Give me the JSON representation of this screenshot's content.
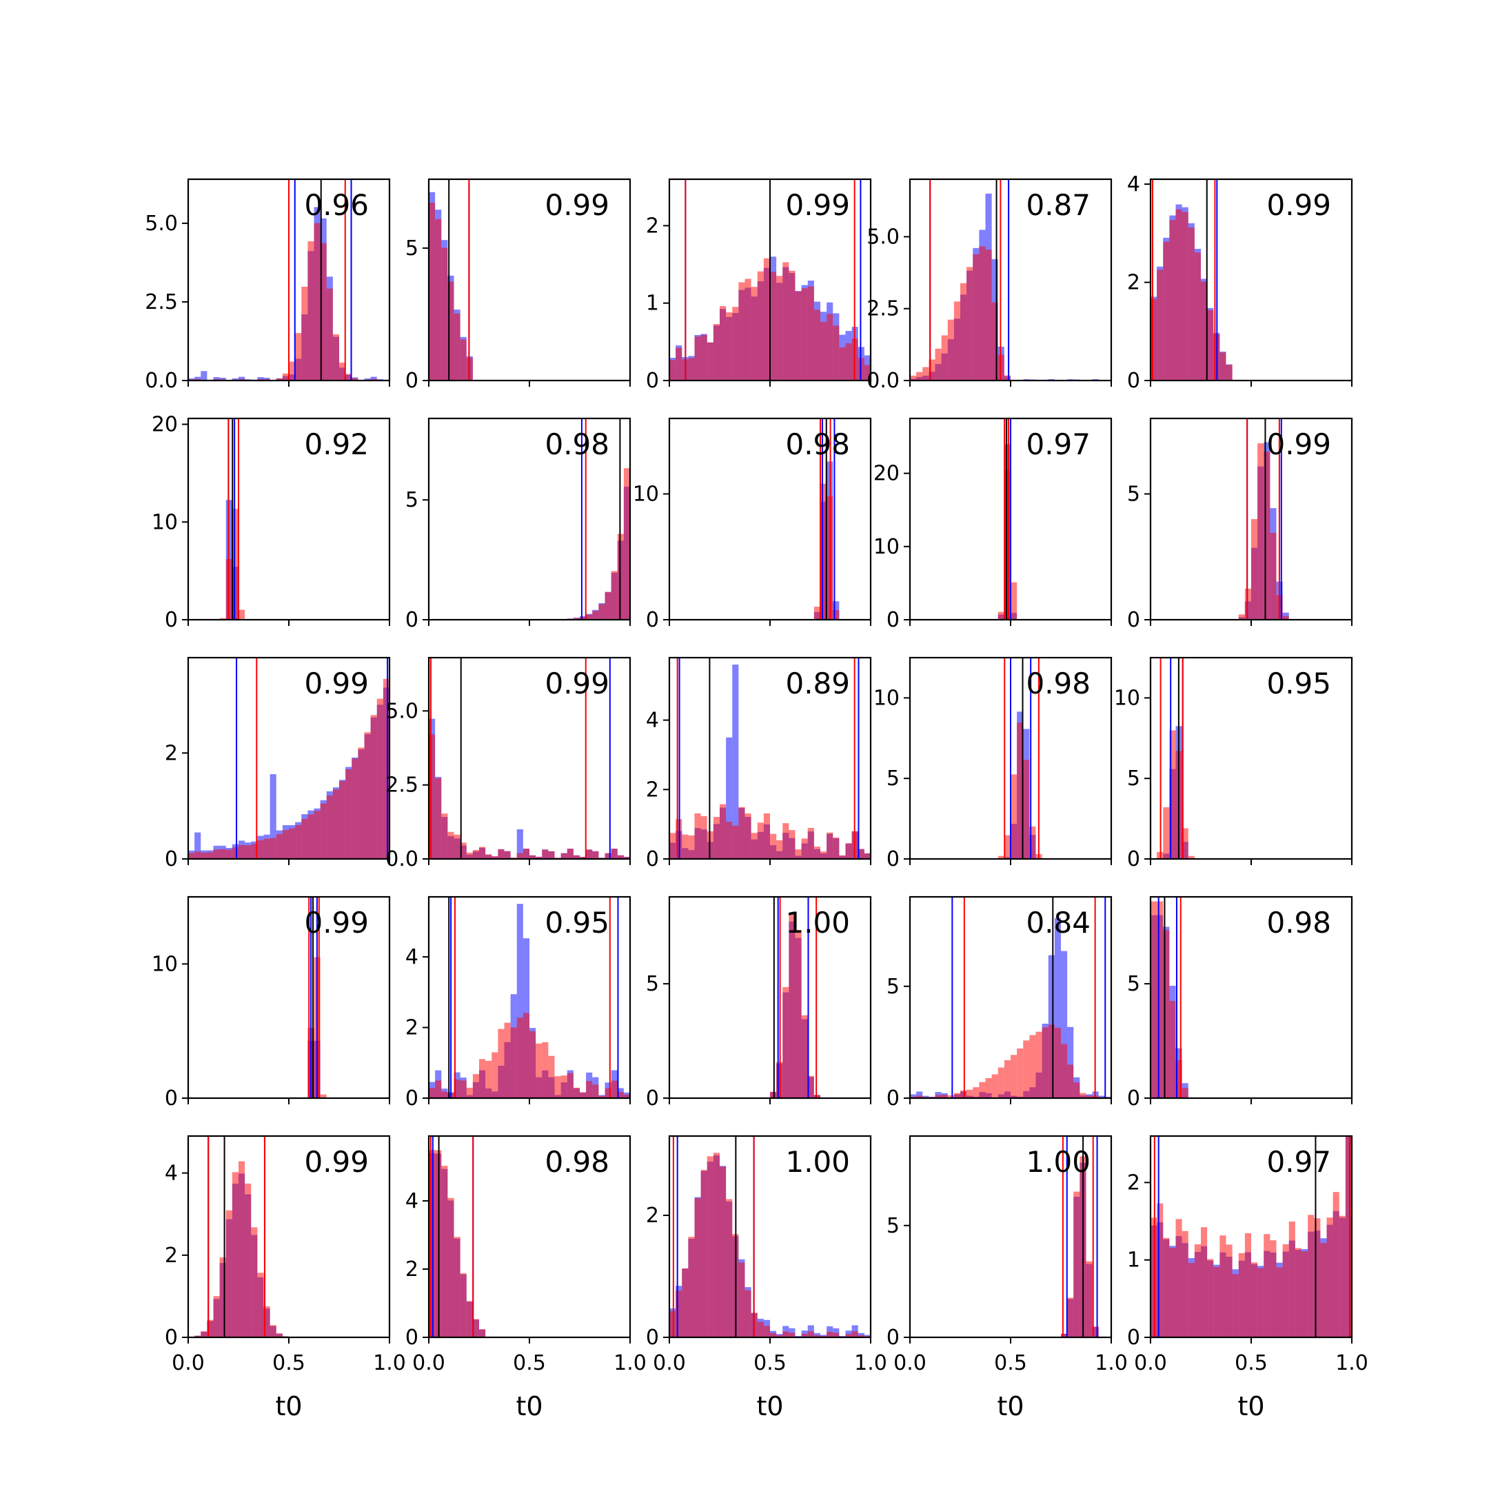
{
  "figure": {
    "xlabel": "t0",
    "x_ticks": [
      "0.0",
      "0.5",
      "1.0"
    ],
    "series_colors": {
      "blue": "#0000ff",
      "red": "#ff0000",
      "true_value": "#000000"
    }
  },
  "chart_data": {
    "type": "bar",
    "layout": {
      "rows": 5,
      "cols": 5
    },
    "xlim": [
      0,
      1
    ],
    "panels": [
      {
        "label": "0.96",
        "ylim": [
          0,
          6.4
        ],
        "yticks": [
          "0.0",
          "2.5",
          "5.0"
        ],
        "ytick_values": [
          0,
          2.5,
          5
        ],
        "true": 0.66,
        "blue_ci": [
          0.53,
          0.81
        ],
        "red_ci": [
          0.5,
          0.78
        ],
        "blue_hist": {
          "type": "gauss",
          "c": 0.65,
          "s": 0.05,
          "a": 5.6,
          "b": 0.12,
          "bumps": [
            [
              0.07,
              0.3
            ]
          ]
        },
        "red_hist": {
          "type": "gauss",
          "c": 0.64,
          "s": 0.06,
          "a": 5.0,
          "b": 0.05
        }
      },
      {
        "label": "0.99",
        "ylim": [
          0,
          7.6
        ],
        "yticks": [
          "0",
          "5"
        ],
        "ytick_values": [
          0,
          5
        ],
        "true": 0.1,
        "blue_ci": [
          0.0,
          0.2
        ],
        "red_ci": [
          0.0,
          0.2
        ],
        "blue_hist": {
          "type": "halfgauss",
          "c": 0,
          "s": 0.1,
          "a": 7.2,
          "cut": 0.21
        },
        "red_hist": {
          "type": "halfgauss",
          "c": 0,
          "s": 0.1,
          "a": 6.8,
          "cut": 0.21
        }
      },
      {
        "label": "0.99",
        "ylim": [
          0,
          2.6
        ],
        "yticks": [
          "0",
          "1",
          "2"
        ],
        "ytick_values": [
          0,
          1,
          2
        ],
        "true": 0.5,
        "blue_ci": [
          0.08,
          0.95
        ],
        "red_ci": [
          0.08,
          0.92
        ],
        "blue_hist": {
          "type": "gauss",
          "c": 0.55,
          "s": 0.25,
          "a": 1.2,
          "b": 0.3,
          "bumps": [
            [
              0.5,
              1.6
            ]
          ]
        },
        "red_hist": {
          "type": "gauss",
          "c": 0.52,
          "s": 0.22,
          "a": 1.3,
          "b": 0.3
        }
      },
      {
        "label": "0.87",
        "ylim": [
          0,
          7.0
        ],
        "yticks": [
          "0.0",
          "2.5",
          "5.0"
        ],
        "ytick_values": [
          0,
          2.5,
          5
        ],
        "true": 0.43,
        "blue_ci": [
          0.1,
          0.49
        ],
        "red_ci": [
          0.1,
          0.45
        ],
        "blue_hist": {
          "type": "skew",
          "c": 0.4,
          "sl": 0.12,
          "sr": 0.03,
          "a": 5.5,
          "b": 0.05,
          "bumps": [
            [
              0.38,
              6.5
            ]
          ]
        },
        "red_hist": {
          "type": "skew",
          "c": 0.38,
          "sl": 0.14,
          "sr": 0.04,
          "a": 4.7,
          "b": 0.02
        }
      },
      {
        "label": "0.99",
        "ylim": [
          0,
          4.1
        ],
        "yticks": [
          "0",
          "2",
          "4"
        ],
        "ytick_values": [
          0,
          2,
          4
        ],
        "true": 0.28,
        "blue_ci": [
          0.0,
          0.33
        ],
        "red_ci": [
          0.01,
          0.32
        ],
        "blue_hist": {
          "type": "gauss",
          "c": 0.15,
          "s": 0.11,
          "a": 3.6,
          "cut": 0.4
        },
        "red_hist": {
          "type": "gauss",
          "c": 0.15,
          "s": 0.11,
          "a": 3.5,
          "cut": 0.4
        }
      },
      {
        "label": "0.92",
        "ylim": [
          0,
          20.6
        ],
        "yticks": [
          "0",
          "10",
          "20"
        ],
        "ytick_values": [
          0,
          10,
          20
        ],
        "true": 0.22,
        "blue_ci": [
          0.2,
          0.23
        ],
        "red_ci": [
          0.2,
          0.25
        ],
        "blue_hist": {
          "type": "gauss",
          "c": 0.215,
          "s": 0.012,
          "a": 20.0
        },
        "red_hist": {
          "type": "gauss",
          "c": 0.225,
          "s": 0.018,
          "a": 13.0
        }
      },
      {
        "label": "0.98",
        "ylim": [
          0,
          8.4
        ],
        "yticks": [
          "0",
          "5"
        ],
        "ytick_values": [
          0,
          5
        ],
        "true": 0.95,
        "blue_ci": [
          0.76,
          1.0
        ],
        "red_ci": [
          0.78,
          1.0
        ],
        "blue_hist": {
          "type": "expright",
          "s": 0.06,
          "a": 7.2
        },
        "red_hist": {
          "type": "expright",
          "s": 0.055,
          "a": 8.4
        }
      },
      {
        "label": "0.98",
        "ylim": [
          0,
          16.0
        ],
        "yticks": [
          "0",
          "10"
        ],
        "ytick_values": [
          0,
          10
        ],
        "true": 0.78,
        "blue_ci": [
          0.76,
          0.82
        ],
        "red_ci": [
          0.75,
          0.8
        ],
        "blue_hist": {
          "type": "gauss",
          "c": 0.785,
          "s": 0.02,
          "a": 15.0
        },
        "red_hist": {
          "type": "gauss",
          "c": 0.78,
          "s": 0.02,
          "a": 14.0
        }
      },
      {
        "label": "0.97",
        "ylim": [
          0,
          27.5
        ],
        "yticks": [
          "0",
          "10",
          "20"
        ],
        "ytick_values": [
          0,
          10,
          20
        ],
        "true": 0.48,
        "blue_ci": [
          0.47,
          0.5
        ],
        "red_ci": [
          0.47,
          0.49
        ],
        "blue_hist": {
          "type": "gauss",
          "c": 0.485,
          "s": 0.012,
          "a": 24.0
        },
        "red_hist": {
          "type": "gauss",
          "c": 0.49,
          "s": 0.015,
          "a": 22.0
        }
      },
      {
        "label": "0.99",
        "ylim": [
          0,
          8.0
        ],
        "yticks": [
          "0",
          "5"
        ],
        "ytick_values": [
          0,
          5
        ],
        "true": 0.57,
        "blue_ci": [
          0.48,
          0.65
        ],
        "red_ci": [
          0.48,
          0.64
        ],
        "blue_hist": {
          "type": "gauss",
          "c": 0.57,
          "s": 0.04,
          "a": 7.2
        },
        "red_hist": {
          "type": "gauss",
          "c": 0.56,
          "s": 0.04,
          "a": 7.4
        }
      },
      {
        "label": "0.99",
        "ylim": [
          0,
          3.8
        ],
        "yticks": [
          "0",
          "2"
        ],
        "ytick_values": [
          0,
          2
        ],
        "true": 1.0,
        "blue_ci": [
          0.24,
          0.99
        ],
        "red_ci": [
          0.34,
          1.0
        ],
        "blue_hist": {
          "type": "expright",
          "s": 0.28,
          "a": 3.4,
          "b": 0.1,
          "bumps": [
            [
              0.42,
              1.6
            ],
            [
              0.05,
              0.5
            ]
          ]
        },
        "red_hist": {
          "type": "expright",
          "s": 0.26,
          "a": 3.6,
          "b": 0.05
        }
      },
      {
        "label": "0.99",
        "ylim": [
          0,
          6.8
        ],
        "yticks": [
          "0.0",
          "2.5",
          "5.0"
        ],
        "ytick_values": [
          0,
          2.5,
          5
        ],
        "true": 0.16,
        "blue_ci": [
          0.01,
          0.9
        ],
        "red_ci": [
          0.01,
          0.78
        ],
        "blue_hist": {
          "type": "expleft",
          "s": 0.05,
          "a": 6.2,
          "b": 0.35,
          "bumps": [
            [
              0.45,
              1.0
            ]
          ]
        },
        "red_hist": {
          "type": "expleft",
          "s": 0.06,
          "a": 5.2,
          "b": 0.35
        }
      },
      {
        "label": "0.89",
        "ylim": [
          0,
          5.8
        ],
        "yticks": [
          "0",
          "2",
          "4"
        ],
        "ytick_values": [
          0,
          2,
          4
        ],
        "true": 0.2,
        "blue_ci": [
          0.05,
          0.94
        ],
        "red_ci": [
          0.04,
          0.92
        ],
        "blue_hist": {
          "type": "gauss",
          "c": 0.32,
          "s": 0.1,
          "a": 0.8,
          "b": 0.8,
          "bumps": [
            [
              0.33,
              5.6
            ],
            [
              0.31,
              3.5
            ]
          ]
        },
        "red_hist": {
          "type": "gauss",
          "c": 0.3,
          "s": 0.2,
          "a": 0.8,
          "b": 0.8
        }
      },
      {
        "label": "0.98",
        "ylim": [
          0,
          12.5
        ],
        "yticks": [
          "0",
          "5",
          "10"
        ],
        "ytick_values": [
          0,
          5,
          10
        ],
        "true": 0.56,
        "blue_ci": [
          0.5,
          0.6
        ],
        "red_ci": [
          0.47,
          0.64
        ],
        "blue_hist": {
          "type": "gauss",
          "c": 0.56,
          "s": 0.025,
          "a": 10.5
        },
        "red_hist": {
          "type": "gauss",
          "c": 0.55,
          "s": 0.035,
          "a": 8.5
        }
      },
      {
        "label": "0.95",
        "ylim": [
          0,
          12.5
        ],
        "yticks": [
          "0",
          "5",
          "10"
        ],
        "ytick_values": [
          0,
          5,
          10
        ],
        "true": 0.14,
        "blue_ci": [
          0.1,
          0.16
        ],
        "red_ci": [
          0.05,
          0.16
        ],
        "blue_hist": {
          "type": "gauss",
          "c": 0.13,
          "s": 0.02,
          "a": 9.5
        },
        "red_hist": {
          "type": "gauss",
          "c": 0.12,
          "s": 0.03,
          "a": 8.5
        }
      },
      {
        "label": "0.99",
        "ylim": [
          0,
          15.0
        ],
        "yticks": [
          "0",
          "10"
        ],
        "ytick_values": [
          0,
          10
        ],
        "true": 0.62,
        "blue_ci": [
          0.61,
          0.64
        ],
        "red_ci": [
          0.6,
          0.65
        ],
        "blue_hist": {
          "type": "gauss",
          "c": 0.625,
          "s": 0.01,
          "a": 14.5
        },
        "red_hist": {
          "type": "gauss",
          "c": 0.63,
          "s": 0.015,
          "a": 13.5
        }
      },
      {
        "label": "0.95",
        "ylim": [
          0,
          5.7
        ],
        "yticks": [
          "0",
          "2",
          "4"
        ],
        "ytick_values": [
          0,
          2,
          4
        ],
        "true": 0.1,
        "blue_ci": [
          0.11,
          0.94
        ],
        "red_ci": [
          0.13,
          0.9
        ],
        "blue_hist": {
          "type": "gauss",
          "c": 0.46,
          "s": 0.04,
          "a": 4.5,
          "b": 0.8,
          "bumps": [
            [
              0.45,
              5.5
            ]
          ]
        },
        "red_hist": {
          "type": "gauss",
          "c": 0.45,
          "s": 0.12,
          "a": 2.0,
          "b": 0.5
        }
      },
      {
        "label": "1.00",
        "ylim": [
          0,
          8.8
        ],
        "yticks": [
          "0",
          "5"
        ],
        "ytick_values": [
          0,
          5
        ],
        "true": 0.52,
        "blue_ci": [
          0.54,
          0.69
        ],
        "red_ci": [
          0.55,
          0.73
        ],
        "blue_hist": {
          "type": "gauss",
          "c": 0.62,
          "s": 0.04,
          "a": 8.0
        },
        "red_hist": {
          "type": "gauss",
          "c": 0.62,
          "s": 0.04,
          "a": 8.4
        }
      },
      {
        "label": "0.84",
        "ylim": [
          0,
          9.0
        ],
        "yticks": [
          "0",
          "5"
        ],
        "ytick_values": [
          0,
          5
        ],
        "true": 0.71,
        "blue_ci": [
          0.21,
          0.97
        ],
        "red_ci": [
          0.27,
          0.92
        ],
        "blue_hist": {
          "type": "skew",
          "c": 0.74,
          "sl": 0.05,
          "sr": 0.04,
          "a": 8.0,
          "b": 0.3
        },
        "red_hist": {
          "type": "skew",
          "c": 0.72,
          "sl": 0.2,
          "sr": 0.06,
          "a": 3.2,
          "b": 0.1
        }
      },
      {
        "label": "0.98",
        "ylim": [
          0,
          8.8
        ],
        "yticks": [
          "0",
          "5"
        ],
        "ytick_values": [
          0,
          5
        ],
        "true": 0.07,
        "blue_ci": [
          0.04,
          0.13
        ],
        "red_ci": [
          0.0,
          0.15
        ],
        "blue_hist": {
          "type": "halfgauss",
          "c": 0.06,
          "s": 0.05,
          "a": 8.0,
          "cut": 0.18
        },
        "red_hist": {
          "type": "halfgauss",
          "c": 0.05,
          "s": 0.05,
          "a": 8.6,
          "cut": 0.18
        }
      },
      {
        "label": "0.99",
        "ylim": [
          0,
          4.9
        ],
        "yticks": [
          "0",
          "2",
          "4"
        ],
        "ytick_values": [
          0,
          2,
          4
        ],
        "true": 0.18,
        "blue_ci": [
          0.1,
          0.38
        ],
        "red_ci": [
          0.1,
          0.38
        ],
        "blue_hist": {
          "type": "gauss",
          "c": 0.26,
          "s": 0.07,
          "a": 4.0
        },
        "red_hist": {
          "type": "gauss",
          "c": 0.26,
          "s": 0.07,
          "a": 4.3
        }
      },
      {
        "label": "0.98",
        "ylim": [
          0,
          5.9
        ],
        "yticks": [
          "0",
          "2",
          "4"
        ],
        "ytick_values": [
          0,
          2,
          4
        ],
        "true": 0.05,
        "blue_ci": [
          0.02,
          0.22
        ],
        "red_ci": [
          0.01,
          0.22
        ],
        "blue_hist": {
          "type": "halfgauss",
          "c": 0.04,
          "s": 0.09,
          "a": 5.4,
          "cut": 0.28
        },
        "red_hist": {
          "type": "halfgauss",
          "c": 0.04,
          "s": 0.09,
          "a": 5.5,
          "cut": 0.28
        }
      },
      {
        "label": "1.00",
        "ylim": [
          0,
          3.3
        ],
        "yticks": [
          "0",
          "2"
        ],
        "ytick_values": [
          0,
          2
        ],
        "true": 0.33,
        "blue_ci": [
          0.04,
          0.42
        ],
        "red_ci": [
          0.02,
          0.42
        ],
        "blue_hist": {
          "type": "gauss",
          "c": 0.22,
          "s": 0.1,
          "a": 2.9,
          "b": 0.2
        },
        "red_hist": {
          "type": "gauss",
          "c": 0.22,
          "s": 0.1,
          "a": 3.0,
          "b": 0.1
        }
      },
      {
        "label": "1.00",
        "ylim": [
          0,
          9.0
        ],
        "yticks": [
          "0",
          "5"
        ],
        "ytick_values": [
          0,
          5
        ],
        "true": 0.86,
        "blue_ci": [
          0.78,
          0.93
        ],
        "red_ci": [
          0.76,
          0.91
        ],
        "blue_hist": {
          "type": "gauss",
          "c": 0.85,
          "s": 0.03,
          "a": 8.2
        },
        "red_hist": {
          "type": "gauss",
          "c": 0.85,
          "s": 0.03,
          "a": 8.5
        }
      },
      {
        "label": "0.97",
        "ylim": [
          0,
          2.6
        ],
        "yticks": [
          "0",
          "1",
          "2"
        ],
        "ytick_values": [
          0,
          1,
          2
        ],
        "true": 0.82,
        "blue_ci": [
          0.04,
          0.99
        ],
        "red_ci": [
          0.02,
          0.99
        ],
        "blue_hist": {
          "type": "ushape",
          "a": 0.85,
          "b": 0.25
        },
        "red_hist": {
          "type": "ushape",
          "a": 0.75,
          "b": 0.6
        }
      }
    ]
  }
}
